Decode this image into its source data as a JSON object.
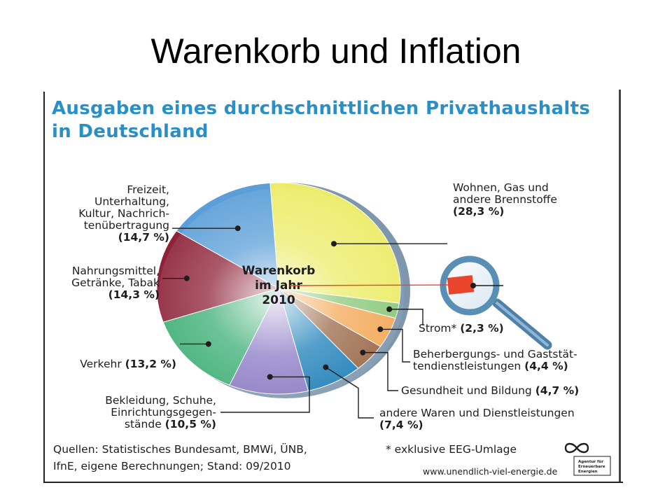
{
  "slide": {
    "title": "Warenkorb und Inflation"
  },
  "infographic": {
    "title_line1": "Ausgaben eines durchschnittlichen Privathaushalts",
    "title_line2": "in Deutschland",
    "center_label": [
      "Warenkorb",
      "im Jahr",
      "2010"
    ],
    "sources_line1": "Quellen: Statistisches Bundesamt, BMWi, ÜNB,",
    "sources_line2": "IfnE, eigene Berechnungen; Stand: 09/2010",
    "footnote": "* exklusive EEG-Umlage",
    "url": "www.unendlich-viel-energie.de",
    "logo_text": [
      "Agentur für",
      "Erneuerbare",
      "Energien"
    ],
    "colors": {
      "title": "#2a8fc4",
      "magnifier": "#5a8fb5",
      "highlight": "#e8452c"
    }
  },
  "chart_data": {
    "type": "pie",
    "title": "Ausgaben eines durchschnittlichen Privathaushalts in Deutschland",
    "unit": "%",
    "slices": [
      {
        "label_lines": [
          "Wohnen, Gas und",
          "andere Brennstoffe"
        ],
        "value_text": "(28,3 %)",
        "value": 28.3,
        "color": "#ecec6a"
      },
      {
        "label_lines": [
          "Strom*"
        ],
        "value_text": "(2,3 %)",
        "value": 2.3,
        "color": "#8bc87a"
      },
      {
        "label_lines": [],
        "value_text": "",
        "value": 4.7,
        "color": "#f3a857"
      },
      {
        "label_lines": [
          "Beherbergungs- und Gaststät-",
          "tendienstleistungen"
        ],
        "value_text": "(4,4 %)",
        "value": 4.4,
        "color": "#9a6848"
      },
      {
        "label_lines": [
          "andere Waren und Dienstleistungen"
        ],
        "value_text": "(7,4 %)",
        "value": 7.4,
        "color": "#1d7fb8"
      },
      {
        "label_lines": [
          "Bekleidung, Schuhe,",
          "Einrichtungsgegen-",
          "stände"
        ],
        "value_text": "(10,5 %)",
        "value": 10.5,
        "color": "#8b79c4"
      },
      {
        "label_lines": [
          "Verkehr"
        ],
        "value_text": "(13,2 %)",
        "value": 13.2,
        "color": "#3cae74"
      },
      {
        "label_lines": [
          "Nahrungsmittel,",
          "Getränke, Tabak"
        ],
        "value_text": "(14,3 %)",
        "value": 14.3,
        "color": "#8e2238"
      },
      {
        "label_lines": [
          "Freizeit,",
          "Unterhaltung,",
          "Kultur, Nachrich-",
          "tenübertragung"
        ],
        "value_text": "(14,7 %)",
        "value": 14.7,
        "color": "#5c9fd8"
      }
    ],
    "orphan_label": {
      "label_lines": [
        "Gesundheit und Bildung"
      ],
      "value_text": "(4,7 %)"
    }
  }
}
